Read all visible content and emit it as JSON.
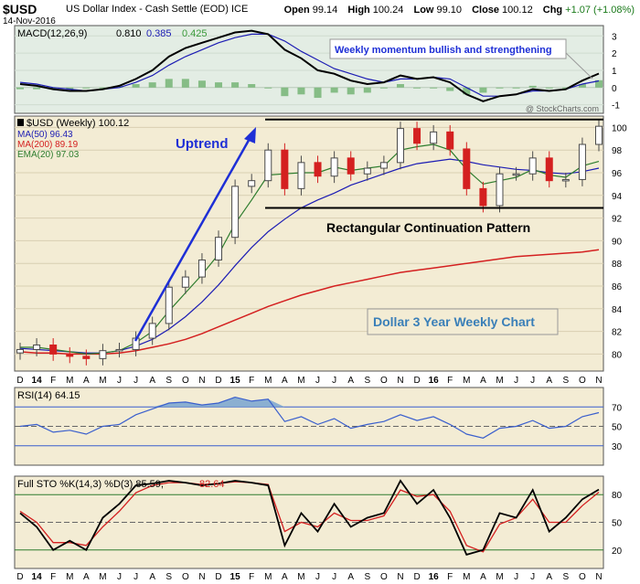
{
  "header": {
    "symbol": "$USD",
    "name": "US Dollar Index - Cash Settle (EOD)",
    "exchange": "ICE",
    "date": "14-Nov-2016",
    "open_label": "Open",
    "open": "99.14",
    "high_label": "High",
    "high": "100.24",
    "low_label": "Low",
    "low": "99.10",
    "close_label": "Close",
    "close": "100.12",
    "chg_label": "Chg",
    "chg": "+1.07 (+1.08%)"
  },
  "colors": {
    "panel_bg": "#f3ecd4",
    "macd_bg": "#e3ede4",
    "up_candle": "#4a4a4a",
    "down_candle": "#d42020",
    "ma50": "#1c1cb4",
    "ma200": "#d42020",
    "ema20": "#2e7d2e",
    "annotation_blue": "#1e2fd6",
    "rsi_line": "#3a5fcd",
    "rsi_fill": "#7fa8d0",
    "sto_k": "#000000",
    "sto_d": "#d42020"
  },
  "watermark": "@ StockCharts.com",
  "macd": {
    "label": "MACD(12,26,9)",
    "macd_value": "0.810",
    "signal_value": "0.385",
    "hist_value": "0.425",
    "callout": "Weekly momentum bullish and strengthening",
    "y_ticks": [
      "3",
      "2",
      "1",
      "0",
      "-1"
    ]
  },
  "price": {
    "label": "$USD (Weekly) 100.12",
    "legend": [
      {
        "text": "MA(50) 96.43",
        "color": "#1c1cb4"
      },
      {
        "text": "MA(200) 89.19",
        "color": "#d42020"
      },
      {
        "text": "EMA(20) 97.03",
        "color": "#2e7d2e"
      }
    ],
    "annotation_uptrend": "Uptrend",
    "annotation_pattern": "Rectangular Continuation Pattern",
    "annotation_title": "Dollar 3 Year Weekly Chart",
    "y_ticks": [
      "100",
      "98",
      "96",
      "94",
      "92",
      "90",
      "88",
      "86",
      "84",
      "82",
      "80"
    ]
  },
  "x_axis": {
    "labels": [
      "D",
      "14",
      "F",
      "M",
      "A",
      "M",
      "J",
      "J",
      "A",
      "S",
      "O",
      "N",
      "D",
      "15",
      "F",
      "M",
      "A",
      "M",
      "J",
      "J",
      "A",
      "S",
      "O",
      "N",
      "D",
      "16",
      "F",
      "M",
      "A",
      "M",
      "J",
      "J",
      "A",
      "S",
      "O",
      "N"
    ]
  },
  "rsi": {
    "label": "RSI(14) 64.15",
    "y_ticks": [
      "70",
      "50",
      "30"
    ]
  },
  "sto": {
    "label": "Full STO %K(14,3) %D(3) 85.59,",
    "d_value": "82.64",
    "y_ticks": [
      "80",
      "50",
      "20"
    ]
  },
  "chart_data": {
    "type": "candlestick",
    "timeframe": "weekly",
    "dates": [
      "2013-12",
      "2014-01",
      "2014-02",
      "2014-03",
      "2014-04",
      "2014-05",
      "2014-06",
      "2014-07",
      "2014-08",
      "2014-09",
      "2014-10",
      "2014-11",
      "2014-12",
      "2015-01",
      "2015-02",
      "2015-03",
      "2015-04",
      "2015-05",
      "2015-06",
      "2015-07",
      "2015-08",
      "2015-09",
      "2015-10",
      "2015-11",
      "2015-12",
      "2016-01",
      "2016-02",
      "2016-03",
      "2016-04",
      "2016-05",
      "2016-06",
      "2016-07",
      "2016-08",
      "2016-09",
      "2016-10",
      "2016-11"
    ],
    "close": [
      80.4,
      80.8,
      80.0,
      79.8,
      79.6,
      80.3,
      80.4,
      81.4,
      82.7,
      85.9,
      86.8,
      88.3,
      90.3,
      94.8,
      95.3,
      98.0,
      94.6,
      96.9,
      95.7,
      97.3,
      95.9,
      96.4,
      96.9,
      99.9,
      98.6,
      99.6,
      98.1,
      94.6,
      93.1,
      95.9,
      95.9,
      97.3,
      95.3,
      95.4,
      98.5,
      100.1
    ],
    "ma50": [
      80.5,
      80.4,
      80.3,
      80.2,
      80.1,
      80.1,
      80.3,
      80.7,
      81.3,
      82.2,
      83.3,
      84.6,
      86.1,
      87.8,
      89.4,
      90.8,
      91.9,
      92.9,
      93.6,
      94.2,
      94.9,
      95.4,
      95.9,
      96.4,
      96.8,
      97.0,
      97.2,
      97.0,
      96.7,
      96.5,
      96.3,
      96.2,
      96.0,
      95.9,
      96.1,
      96.4
    ],
    "ma200": [
      80.2,
      80.1,
      80.1,
      80.0,
      80.0,
      80.0,
      80.1,
      80.3,
      80.6,
      80.9,
      81.3,
      81.8,
      82.4,
      83.0,
      83.6,
      84.2,
      84.7,
      85.2,
      85.6,
      86.0,
      86.3,
      86.6,
      86.9,
      87.2,
      87.4,
      87.6,
      87.8,
      88.0,
      88.2,
      88.4,
      88.6,
      88.7,
      88.8,
      88.9,
      89.0,
      89.2
    ],
    "ema20": [
      80.6,
      80.6,
      80.4,
      80.2,
      80.0,
      80.1,
      80.3,
      81.0,
      82.0,
      83.8,
      85.4,
      87.0,
      88.8,
      91.5,
      93.6,
      95.8,
      95.9,
      96.0,
      96.0,
      96.5,
      96.2,
      96.4,
      96.6,
      98.0,
      98.3,
      98.5,
      98.0,
      96.3,
      95.0,
      95.3,
      95.6,
      96.3,
      95.8,
      95.6,
      96.6,
      97.0
    ],
    "macd": [
      0.2,
      0.1,
      -0.1,
      -0.2,
      -0.2,
      -0.1,
      0.1,
      0.5,
      1.0,
      1.8,
      2.3,
      2.6,
      2.9,
      3.2,
      3.3,
      3.1,
      2.2,
      1.7,
      1.0,
      0.8,
      0.4,
      0.2,
      0.3,
      0.7,
      0.5,
      0.6,
      0.3,
      -0.4,
      -0.8,
      -0.5,
      -0.4,
      -0.1,
      -0.2,
      -0.1,
      0.4,
      0.81
    ],
    "macd_signal": [
      0.3,
      0.2,
      0.0,
      -0.1,
      -0.2,
      -0.1,
      0.0,
      0.3,
      0.7,
      1.3,
      1.8,
      2.2,
      2.6,
      2.9,
      3.1,
      3.1,
      2.7,
      2.1,
      1.6,
      1.1,
      0.8,
      0.5,
      0.3,
      0.5,
      0.5,
      0.6,
      0.5,
      0.0,
      -0.5,
      -0.5,
      -0.4,
      -0.2,
      -0.2,
      -0.1,
      0.2,
      0.385
    ],
    "rsi": [
      50,
      52,
      44,
      46,
      42,
      50,
      52,
      62,
      68,
      74,
      75,
      72,
      74,
      80,
      76,
      78,
      55,
      60,
      52,
      58,
      48,
      52,
      55,
      62,
      56,
      60,
      52,
      42,
      38,
      48,
      50,
      56,
      48,
      50,
      60,
      64.15
    ],
    "sto_k": [
      60,
      45,
      20,
      30,
      20,
      55,
      70,
      90,
      92,
      95,
      93,
      90,
      92,
      95,
      93,
      90,
      25,
      60,
      40,
      70,
      45,
      55,
      60,
      95,
      70,
      85,
      55,
      15,
      20,
      60,
      55,
      85,
      40,
      55,
      75,
      85.59
    ],
    "sto_d": [
      62,
      50,
      28,
      28,
      25,
      45,
      62,
      82,
      90,
      93,
      93,
      91,
      92,
      94,
      93,
      91,
      40,
      50,
      45,
      60,
      52,
      52,
      57,
      85,
      78,
      80,
      62,
      25,
      18,
      48,
      55,
      75,
      50,
      50,
      68,
      82.64
    ],
    "price_ylim": [
      78.5,
      101
    ],
    "macd_ylim": [
      -1.5,
      3.6
    ],
    "rsi_ylim": [
      10,
      90
    ],
    "sto_ylim": [
      0,
      100
    ],
    "rectangle_top": 100.7,
    "rectangle_bottom": 92.9
  }
}
